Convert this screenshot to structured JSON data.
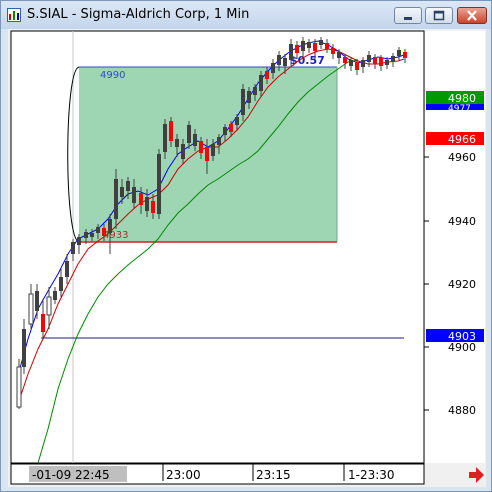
{
  "window": {
    "title": "S.SIAL - Sigma-Aldrich Corp, 1 Min",
    "minimize_icon": "minimize-icon",
    "maximize_icon": "maximize-icon",
    "close_icon": "close-icon"
  },
  "chart_data": {
    "type": "candlestick",
    "symbol": "S.SIAL",
    "y_ticks": [
      "4960",
      "4940",
      "4920",
      "4900",
      "4880"
    ],
    "x_ticks": [
      "-01-09 22:45",
      "23:00",
      "23:15",
      "1-23:30"
    ],
    "price_labels": [
      {
        "text": "4980",
        "color": "#009900"
      },
      {
        "text": "4977",
        "color": "#0000ff"
      },
      {
        "text": "4966",
        "color": "#ff0000"
      },
      {
        "text": "4903",
        "color": "#0000ff"
      }
    ],
    "box": {
      "top_label": "4990",
      "bottom_label": "4933",
      "profit_label": "$0.57"
    },
    "colors": {
      "up_candle": "#404040",
      "down_candle": "#ff0000",
      "ma_fast": "#0000ff",
      "ma_mid": "#cc0000",
      "ma_slow": "#008800",
      "box_fill": "#9ed6b4"
    },
    "scroll_arrow_icon": "right-arrow-icon"
  }
}
